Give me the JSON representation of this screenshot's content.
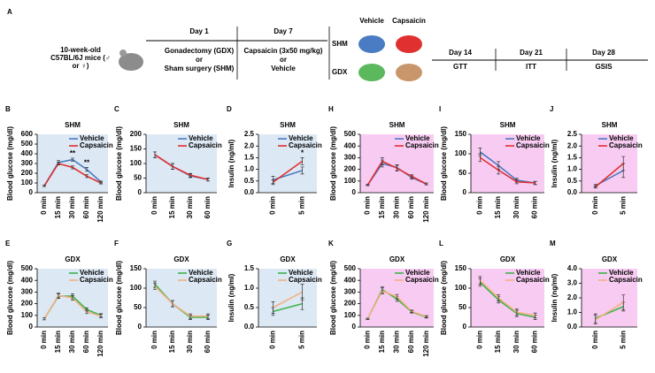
{
  "panel_a": {
    "letter": "A",
    "mice": "10-week-old C57BL/6J mice (♂ or ♀)",
    "day1": "Day 1",
    "gdx": "Gonadectomy (GDX)",
    "or1": "or",
    "shm": "Sham surgery (SHM)",
    "day7": "Day 7",
    "caps": "Capsaicin (3x50 mg/kg)",
    "or2": "or",
    "veh": "Vehicle",
    "group_vehicle": "Vehicle",
    "group_capsaicin": "Capsaicin",
    "row_shm": "SHM",
    "row_gdx": "GDX",
    "day14": "Day 14",
    "gtt": "GTT",
    "day21": "Day 21",
    "itt": "ITT",
    "day28": "Day 28",
    "gsis": "GSIS"
  },
  "chart_data": [
    {
      "type": "line",
      "panel": "B",
      "title": "SHM",
      "ylabel": "Blood glucose (mg/dl)",
      "background": "#dce8f4",
      "categories": [
        "0 min",
        "15 min",
        "30 min",
        "60 min",
        "120 min"
      ],
      "ylim": [
        0,
        600
      ],
      "yticks": [
        0,
        100,
        200,
        300,
        400,
        500,
        600
      ],
      "series": [
        {
          "name": "Vehicle",
          "color": "#4a7cc4",
          "values": [
            70,
            310,
            340,
            240,
            110
          ],
          "errors": [
            8,
            20,
            15,
            20,
            10
          ]
        },
        {
          "name": "Capsaicin",
          "color": "#e03030",
          "values": [
            70,
            300,
            260,
            170,
            100
          ],
          "errors": [
            8,
            15,
            15,
            15,
            10
          ]
        }
      ],
      "annotations": [
        null,
        null,
        "**",
        "**",
        null
      ]
    },
    {
      "type": "line",
      "panel": "C",
      "title": "SHM",
      "ylabel": "Blood glucose (mg/dl)",
      "background": "#dce8f4",
      "categories": [
        "0 min",
        "15 min",
        "30 min",
        "60 min"
      ],
      "ylim": [
        0,
        200
      ],
      "yticks": [
        0,
        50,
        100,
        150,
        200
      ],
      "series": [
        {
          "name": "Vehicle",
          "color": "#4a7cc4",
          "values": [
            130,
            90,
            58,
            45
          ],
          "errors": [
            10,
            10,
            6,
            5
          ]
        },
        {
          "name": "Capsaicin",
          "color": "#e03030",
          "values": [
            130,
            90,
            60,
            45
          ],
          "errors": [
            10,
            10,
            6,
            5
          ]
        }
      ]
    },
    {
      "type": "line",
      "panel": "D",
      "title": "SHM",
      "ylabel": "Insulin (ng/ml)",
      "background": "#dce8f4",
      "categories": [
        "0 min",
        "5 min"
      ],
      "ylim": [
        0,
        2.5
      ],
      "yticks": [
        {
          "value": 0,
          "label": "0.0"
        },
        {
          "value": 0.5,
          "label": "0.5"
        },
        {
          "value": 1,
          "label": "1.0"
        },
        {
          "value": 1.5,
          "label": "1.5"
        },
        {
          "value": 2,
          "label": "2.0"
        },
        {
          "value": 2.5,
          "label": "2.5"
        }
      ],
      "series": [
        {
          "name": "Vehicle",
          "color": "#4a7cc4",
          "values": [
            0.55,
            0.95
          ],
          "errors": [
            0.15,
            0.15
          ]
        },
        {
          "name": "Capsaicin",
          "color": "#e03030",
          "values": [
            0.45,
            1.35
          ],
          "errors": [
            0.1,
            0.15
          ]
        }
      ],
      "annotations": [
        null,
        "*"
      ]
    },
    {
      "type": "line",
      "panel": "H",
      "title": "SHM",
      "ylabel": "Blood glucose (mg/dl)",
      "background": "#f8ccf2",
      "categories": [
        "0 min",
        "15 min",
        "30 min",
        "60 min",
        "120 min"
      ],
      "ylim": [
        0,
        500
      ],
      "yticks": [
        0,
        100,
        200,
        300,
        400,
        500
      ],
      "series": [
        {
          "name": "Vehicle",
          "color": "#4a7cc4",
          "values": [
            65,
            250,
            215,
            130,
            75
          ],
          "errors": [
            5,
            30,
            25,
            15,
            8
          ]
        },
        {
          "name": "Capsaicin",
          "color": "#e03030",
          "values": [
            65,
            270,
            210,
            140,
            75
          ],
          "errors": [
            5,
            30,
            25,
            15,
            8
          ]
        }
      ]
    },
    {
      "type": "line",
      "panel": "I",
      "title": "SHM",
      "ylabel": "Blood glucose (mg/dl)",
      "background": "#f8ccf2",
      "categories": [
        "0 min",
        "15 min",
        "30 min",
        "60 min"
      ],
      "ylim": [
        0,
        150
      ],
      "yticks": [
        0,
        50,
        100,
        150
      ],
      "series": [
        {
          "name": "Vehicle",
          "color": "#4a7cc4",
          "values": [
            105,
            70,
            32,
            25
          ],
          "errors": [
            10,
            10,
            5,
            4
          ]
        },
        {
          "name": "Capsaicin",
          "color": "#e03030",
          "values": [
            90,
            58,
            28,
            25
          ],
          "errors": [
            10,
            10,
            5,
            4
          ]
        }
      ]
    },
    {
      "type": "line",
      "panel": "J",
      "title": "SHM",
      "ylabel": "Insulin (ng/ml)",
      "background": "#f8ccf2",
      "categories": [
        "0 min",
        "5 min"
      ],
      "ylim": [
        0,
        2.5
      ],
      "yticks": [
        {
          "value": 0,
          "label": "0.0"
        },
        {
          "value": 0.5,
          "label": "0.5"
        },
        {
          "value": 1,
          "label": "1.0"
        },
        {
          "value": 1.5,
          "label": "1.5"
        },
        {
          "value": 2,
          "label": "2.0"
        },
        {
          "value": 2.5,
          "label": "2.5"
        }
      ],
      "series": [
        {
          "name": "Vehicle",
          "color": "#4a7cc4",
          "values": [
            0.3,
            0.95
          ],
          "errors": [
            0.05,
            0.3
          ]
        },
        {
          "name": "Capsaicin",
          "color": "#e03030",
          "values": [
            0.25,
            1.25
          ],
          "errors": [
            0.05,
            0.3
          ]
        }
      ]
    },
    {
      "type": "line",
      "panel": "E",
      "title": "GDX",
      "ylabel": "Blood glucose (mg/dl)",
      "background": "#dce8f4",
      "categories": [
        "0 min",
        "15 min",
        "30 min",
        "60 min",
        "120 min"
      ],
      "ylim": [
        0,
        500
      ],
      "yticks": [
        0,
        100,
        200,
        300,
        400,
        500
      ],
      "series": [
        {
          "name": "Vehicle",
          "color": "#3cb44b",
          "values": [
            70,
            265,
            265,
            150,
            100
          ],
          "errors": [
            8,
            20,
            20,
            15,
            15
          ]
        },
        {
          "name": "Capsaicin",
          "color": "#f4b183",
          "values": [
            70,
            270,
            250,
            130,
            95
          ],
          "errors": [
            8,
            20,
            20,
            15,
            15
          ]
        }
      ]
    },
    {
      "type": "line",
      "panel": "F",
      "title": "GDX",
      "ylabel": "Blood glucose (mg/dl)",
      "background": "#dce8f4",
      "categories": [
        "0 min",
        "15 min",
        "30 min",
        "60 min"
      ],
      "ylim": [
        0,
        150
      ],
      "yticks": [
        0,
        50,
        100,
        150
      ],
      "series": [
        {
          "name": "Vehicle",
          "color": "#3cb44b",
          "values": [
            110,
            60,
            25,
            25
          ],
          "errors": [
            8,
            8,
            6,
            6
          ]
        },
        {
          "name": "Capsaicin",
          "color": "#f4b183",
          "values": [
            105,
            60,
            28,
            28
          ],
          "errors": [
            8,
            8,
            6,
            6
          ]
        }
      ]
    },
    {
      "type": "line",
      "panel": "G",
      "title": "GDX",
      "ylabel": "Insulin (ng/ml)",
      "background": "#dce8f4",
      "categories": [
        "0 min",
        "5 min"
      ],
      "ylim": [
        0,
        1.5
      ],
      "yticks": [
        {
          "value": 0,
          "label": "0.0"
        },
        {
          "value": 0.5,
          "label": "0.5"
        },
        {
          "value": 1,
          "label": "1.0"
        },
        {
          "value": 1.5,
          "label": "1.5"
        }
      ],
      "series": [
        {
          "name": "Vehicle",
          "color": "#3cb44b",
          "values": [
            0.4,
            0.6
          ],
          "errors": [
            0.1,
            0.15
          ]
        },
        {
          "name": "Capsaicin",
          "color": "#f4b183",
          "values": [
            0.5,
            0.9
          ],
          "errors": [
            0.15,
            0.2
          ]
        }
      ]
    },
    {
      "type": "line",
      "panel": "K",
      "title": "GDX",
      "ylabel": "Blood glucose (mg/dl)",
      "background": "#f8ccf2",
      "categories": [
        "0 min",
        "15 min",
        "30 min",
        "60 min",
        "120 min"
      ],
      "ylim": [
        0,
        500
      ],
      "yticks": [
        0,
        100,
        200,
        300,
        400,
        500
      ],
      "series": [
        {
          "name": "Vehicle",
          "color": "#3cb44b",
          "values": [
            70,
            320,
            240,
            130,
            85
          ],
          "errors": [
            5,
            25,
            20,
            10,
            8
          ]
        },
        {
          "name": "Capsaicin",
          "color": "#f4b183",
          "values": [
            70,
            310,
            260,
            135,
            90
          ],
          "errors": [
            5,
            25,
            20,
            10,
            8
          ]
        }
      ]
    },
    {
      "type": "line",
      "panel": "L",
      "title": "GDX",
      "ylabel": "Blood glucose (mg/dl)",
      "background": "#f8ccf2",
      "categories": [
        "0 min",
        "15 min",
        "30 min",
        "60 min"
      ],
      "ylim": [
        0,
        150
      ],
      "yticks": [
        0,
        50,
        100,
        150
      ],
      "series": [
        {
          "name": "Vehicle",
          "color": "#3cb44b",
          "values": [
            115,
            70,
            35,
            25
          ],
          "errors": [
            10,
            8,
            8,
            6
          ]
        },
        {
          "name": "Capsaicin",
          "color": "#f4b183",
          "values": [
            120,
            75,
            38,
            30
          ],
          "errors": [
            10,
            8,
            8,
            6
          ]
        }
      ]
    },
    {
      "type": "line",
      "panel": "M",
      "title": "GDX",
      "ylabel": "Insulin (ng/ml)",
      "background": "#f8ccf2",
      "categories": [
        "0 min",
        "5 min"
      ],
      "ylim": [
        0,
        4
      ],
      "yticks": [
        {
          "value": 0,
          "label": "0.0"
        },
        {
          "value": 1,
          "label": "1.0"
        },
        {
          "value": 2,
          "label": "2.0"
        },
        {
          "value": 3,
          "label": "3.0"
        },
        {
          "value": 4,
          "label": "4.0"
        }
      ],
      "series": [
        {
          "name": "Vehicle",
          "color": "#3cb44b",
          "values": [
            0.6,
            1.4
          ],
          "errors": [
            0.3,
            0.3
          ]
        },
        {
          "name": "Capsaicin",
          "color": "#f4b183",
          "values": [
            0.5,
            1.7
          ],
          "errors": [
            0.3,
            0.5
          ]
        }
      ]
    }
  ]
}
